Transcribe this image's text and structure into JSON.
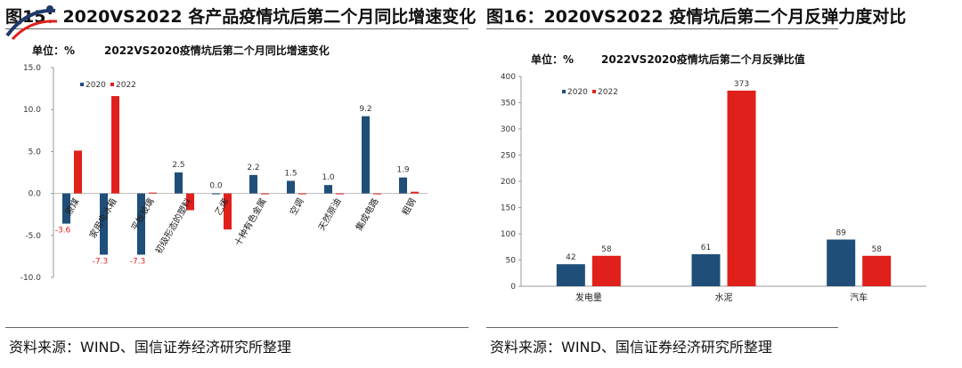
{
  "left": {
    "figure_title": "图15：2020VS2022 各产品疫情坑后第二个月同比增速变化",
    "source": "资料来源：WIND、国信证券经济研究所整理",
    "chart_data": {
      "type": "bar",
      "unit_label": "单位：%",
      "title": "2022VS2020疫情坑后第二个月同比增速变化",
      "categories": [
        "原煤",
        "家用电冰箱",
        "平板玻璃",
        "初级形态的塑料",
        "乙烯",
        "十种有色金属",
        "空调",
        "天然原油",
        "集成电路",
        "粗钢"
      ],
      "series": [
        {
          "name": "2020",
          "color": "#1f4e79",
          "values": [
            -3.6,
            -7.3,
            -7.3,
            2.5,
            0.0,
            2.2,
            1.5,
            1.0,
            9.2,
            1.9
          ]
        },
        {
          "name": "2022",
          "color": "#e0201b",
          "values": [
            5.1,
            11.6,
            0.1,
            -2.0,
            -4.3,
            -0.1,
            -0.1,
            0.0,
            0.0,
            0.2
          ]
        }
      ],
      "data_labels": [
        "-3.6",
        "-7.3",
        "-7.3",
        "2.5",
        "0.0",
        "2.2",
        "1.5",
        "1.0",
        "9.2",
        "1.9"
      ],
      "yticks": [
        "15.0",
        "10.0",
        "5.0",
        "0.0",
        "-5.0",
        "-10.0"
      ],
      "ylim": [
        -10,
        15
      ]
    }
  },
  "right": {
    "figure_title": "图16：2020VS2022 疫情坑后第二个月反弹力度对比",
    "source": "资料来源：WIND、国信证券经济研究所整理",
    "chart_data": {
      "type": "bar",
      "unit_label": "单位：%",
      "title": "2022VS2020疫情坑后第二个月反弹比值",
      "categories": [
        "发电量",
        "水泥",
        "汽车"
      ],
      "series": [
        {
          "name": "2020",
          "color": "#1f4e79",
          "values": [
            42,
            61,
            89
          ]
        },
        {
          "name": "2022",
          "color": "#e0201b",
          "values": [
            58,
            373,
            58
          ]
        }
      ],
      "yticks": [
        "0",
        "50",
        "100",
        "150",
        "200",
        "250",
        "300",
        "350",
        "400"
      ],
      "ylim": [
        0,
        400
      ]
    }
  }
}
